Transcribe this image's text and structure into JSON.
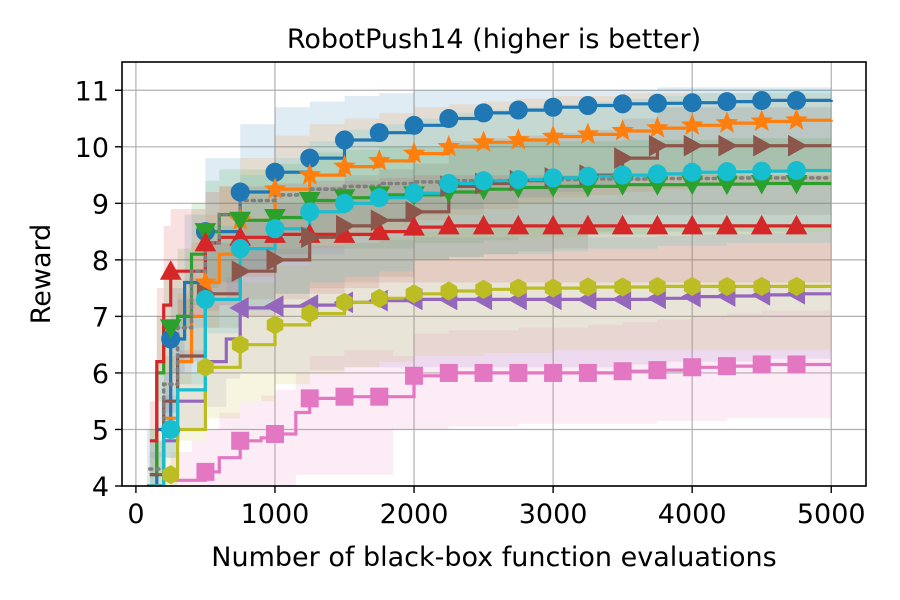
{
  "chart_data": {
    "type": "line",
    "title": "RobotPush14 (higher is better)",
    "xlabel": "Number of black-box function evaluations",
    "ylabel": "Reward",
    "xlim": [
      -100,
      5250
    ],
    "ylim": [
      4,
      11.5
    ],
    "xticks": [
      0,
      1000,
      2000,
      3000,
      4000,
      5000
    ],
    "yticks": [
      4,
      5,
      6,
      7,
      8,
      9,
      10,
      11
    ],
    "grid": true,
    "legend": "none",
    "series": [
      {
        "color": "#1f77b4",
        "marker": "circle",
        "x": [
          80,
          150,
          250,
          350,
          500,
          750,
          1000,
          1250,
          1500,
          1750,
          2000,
          2250,
          2500,
          2750,
          3000,
          3250,
          3500,
          3750,
          4000,
          4250,
          4500,
          4750,
          5000
        ],
        "y": [
          4.0,
          5.0,
          6.6,
          7.6,
          8.5,
          9.2,
          9.55,
          9.8,
          10.12,
          10.25,
          10.38,
          10.5,
          10.6,
          10.65,
          10.7,
          10.73,
          10.76,
          10.77,
          10.78,
          10.8,
          10.82,
          10.82,
          10.83
        ],
        "band_lo": [
          3.5,
          4.0,
          5.0,
          6.0,
          6.8,
          7.4,
          7.8,
          8.1,
          8.4,
          8.6,
          8.7,
          8.8,
          8.9,
          9.0,
          9.1,
          9.2,
          9.3,
          9.4,
          9.5,
          9.5,
          9.6,
          9.6,
          9.6
        ],
        "band_hi": [
          5.0,
          6.0,
          7.5,
          8.8,
          9.8,
          10.4,
          10.7,
          10.8,
          10.9,
          10.95,
          11.0,
          11.0,
          11.0,
          11.0,
          11.0,
          11.0,
          11.0,
          11.05,
          11.05,
          11.05,
          11.05,
          11.05,
          11.05
        ],
        "markers_x": [
          250,
          500,
          750,
          1000,
          1250,
          1500,
          1750,
          2000,
          2250,
          2500,
          2750,
          3000,
          3250,
          3500,
          3750,
          4000,
          4250,
          4500,
          4750
        ]
      },
      {
        "color": "#ff7f0e",
        "marker": "star",
        "x": [
          100,
          200,
          300,
          400,
          500,
          600,
          750,
          1000,
          1250,
          1500,
          1750,
          2000,
          2250,
          2500,
          2750,
          3000,
          3250,
          3500,
          3750,
          4000,
          4250,
          4500,
          4750,
          5000
        ],
        "y": [
          4.0,
          5.2,
          6.2,
          7.0,
          7.6,
          8.1,
          8.7,
          9.25,
          9.5,
          9.65,
          9.75,
          9.88,
          10.0,
          10.08,
          10.12,
          10.18,
          10.22,
          10.28,
          10.33,
          10.38,
          10.42,
          10.45,
          10.47,
          10.48
        ],
        "band_lo": [
          3.5,
          4.2,
          5.0,
          5.8,
          6.3,
          6.8,
          7.2,
          7.7,
          8.0,
          8.2,
          8.4,
          8.5,
          8.7,
          8.8,
          8.9,
          9.0,
          9.1,
          9.15,
          9.2,
          9.25,
          9.3,
          9.3,
          9.35,
          9.35
        ],
        "band_hi": [
          5.0,
          6.3,
          7.4,
          8.3,
          8.8,
          9.3,
          9.8,
          10.2,
          10.4,
          10.5,
          10.6,
          10.7,
          10.75,
          10.8,
          10.85,
          10.9,
          10.9,
          10.95,
          10.95,
          10.95,
          10.95,
          10.95,
          10.95,
          10.95
        ],
        "markers_x": [
          500,
          750,
          1000,
          1250,
          1500,
          1750,
          2000,
          2250,
          2500,
          2750,
          3000,
          3250,
          3500,
          3750,
          4000,
          4250,
          4500,
          4750
        ]
      },
      {
        "color": "#2ca02c",
        "marker": "triangle-down",
        "x": [
          100,
          150,
          200,
          300,
          400,
          500,
          600,
          750,
          1000,
          1250,
          1500,
          1750,
          2000,
          2250,
          2500,
          2750,
          3000,
          3250,
          3500,
          3750,
          4000,
          4250,
          4500,
          4750,
          5000
        ],
        "y": [
          4.2,
          6.0,
          6.8,
          7.0,
          8.1,
          8.5,
          8.8,
          8.7,
          8.75,
          9.05,
          9.1,
          9.15,
          9.15,
          9.2,
          9.25,
          9.28,
          9.3,
          9.3,
          9.33,
          9.33,
          9.34,
          9.34,
          9.35,
          9.35,
          9.35
        ],
        "band_lo": [
          3.8,
          4.8,
          5.5,
          6.0,
          6.8,
          7.2,
          7.5,
          7.6,
          7.8,
          8.0,
          8.1,
          8.2,
          8.2,
          8.3,
          8.3,
          8.35,
          8.4,
          8.4,
          8.45,
          8.45,
          8.5,
          8.5,
          8.5,
          8.5,
          8.5
        ],
        "band_hi": [
          5.0,
          7.0,
          7.8,
          8.2,
          9.0,
          9.4,
          9.6,
          9.6,
          9.7,
          9.9,
          9.95,
          10.0,
          10.0,
          10.05,
          10.05,
          10.1,
          10.1,
          10.1,
          10.12,
          10.12,
          10.12,
          10.15,
          10.15,
          10.15,
          10.15
        ],
        "markers_x": [
          250,
          500,
          750,
          1000,
          1250,
          1500,
          1750,
          2000,
          2250,
          2500,
          2750,
          3000,
          3250,
          3500,
          3750,
          4000,
          4250,
          4500,
          4750
        ]
      },
      {
        "color": "#d62728",
        "marker": "triangle-up",
        "x": [
          100,
          150,
          200,
          250,
          300,
          500,
          600,
          750,
          1000,
          1250,
          1500,
          1750,
          2000,
          2250,
          2500,
          2750,
          3000,
          3250,
          3500,
          3750,
          4000,
          4250,
          4500,
          4750,
          5000
        ],
        "y": [
          4.8,
          6.2,
          7.2,
          7.8,
          7.8,
          8.3,
          8.4,
          8.4,
          8.45,
          8.45,
          8.45,
          8.5,
          8.58,
          8.6,
          8.6,
          8.6,
          8.6,
          8.6,
          8.6,
          8.6,
          8.6,
          8.6,
          8.6,
          8.6,
          8.6
        ],
        "band_lo": [
          4.2,
          5.0,
          6.0,
          6.5,
          6.6,
          7.0,
          7.1,
          7.2,
          7.3,
          7.4,
          7.4,
          7.5,
          7.6,
          7.6,
          7.6,
          7.6,
          7.6,
          7.6,
          7.6,
          7.6,
          7.6,
          7.6,
          7.6,
          7.6,
          7.6
        ],
        "band_hi": [
          5.5,
          7.5,
          8.6,
          8.9,
          8.9,
          9.2,
          9.3,
          9.3,
          9.35,
          9.4,
          9.4,
          9.45,
          9.5,
          9.5,
          9.5,
          9.5,
          9.5,
          9.5,
          9.5,
          9.5,
          9.5,
          9.5,
          9.5,
          9.5,
          9.5
        ],
        "markers_x": [
          250,
          500,
          750,
          1000,
          1250,
          1500,
          1750,
          2000,
          2250,
          2500,
          2750,
          3000,
          3250,
          3500,
          3750,
          4000,
          4250,
          4500,
          4750
        ]
      },
      {
        "color": "#8c564b",
        "marker": "triangle-right",
        "x": [
          100,
          200,
          300,
          500,
          750,
          1000,
          1250,
          1500,
          1750,
          2000,
          2250,
          2500,
          2750,
          3000,
          3250,
          3500,
          3750,
          4000,
          4250,
          4500,
          4750,
          5000
        ],
        "y": [
          4.2,
          5.5,
          6.3,
          7.4,
          7.8,
          8.0,
          8.4,
          8.6,
          8.7,
          8.85,
          9.3,
          9.35,
          9.4,
          9.45,
          9.5,
          9.8,
          10.02,
          10.02,
          10.02,
          10.02,
          10.02,
          10.02
        ],
        "band_lo": [
          3.8,
          4.5,
          5.3,
          6.2,
          6.8,
          7.0,
          7.3,
          7.5,
          7.6,
          7.7,
          8.0,
          8.05,
          8.1,
          8.15,
          8.2,
          8.5,
          8.8,
          8.8,
          8.8,
          8.8,
          8.8,
          8.8
        ],
        "band_hi": [
          4.8,
          6.5,
          7.3,
          8.3,
          8.7,
          9.0,
          9.3,
          9.5,
          9.6,
          9.7,
          10.1,
          10.15,
          10.2,
          10.25,
          10.3,
          10.5,
          10.7,
          10.7,
          10.7,
          10.7,
          10.7,
          10.7
        ],
        "markers_x": [
          500,
          750,
          1000,
          1250,
          1500,
          1750,
          2000,
          2250,
          2500,
          2750,
          3000,
          3250,
          3500,
          3750,
          4000,
          4250,
          4500,
          4750
        ]
      },
      {
        "color": "#9467bd",
        "marker": "triangle-left",
        "x": [
          100,
          200,
          300,
          500,
          650,
          750,
          1000,
          1250,
          1500,
          1750,
          2000,
          2250,
          2500,
          2750,
          3000,
          3250,
          3500,
          3750,
          4000,
          4250,
          4500,
          4750,
          5000
        ],
        "y": [
          4.0,
          4.8,
          5.5,
          6.2,
          6.6,
          7.15,
          7.18,
          7.2,
          7.25,
          7.28,
          7.3,
          7.3,
          7.3,
          7.3,
          7.3,
          7.3,
          7.3,
          7.32,
          7.35,
          7.36,
          7.38,
          7.4,
          7.4
        ],
        "band_lo": [
          3.5,
          4.0,
          4.5,
          5.0,
          5.4,
          5.9,
          6.0,
          6.0,
          6.05,
          6.1,
          6.1,
          6.1,
          6.1,
          6.1,
          6.1,
          6.1,
          6.1,
          6.15,
          6.2,
          6.2,
          6.2,
          6.25,
          6.25
        ],
        "band_hi": [
          4.6,
          5.6,
          6.4,
          7.3,
          7.7,
          8.2,
          8.2,
          8.25,
          8.3,
          8.35,
          8.4,
          8.4,
          8.4,
          8.4,
          8.4,
          8.4,
          8.4,
          8.42,
          8.45,
          8.45,
          8.48,
          8.5,
          8.5
        ],
        "markers_x": [
          750,
          1000,
          1250,
          1500,
          1750,
          2000,
          2250,
          2500,
          2750,
          3000,
          3250,
          3500,
          3750,
          4000,
          4250,
          4500,
          4750
        ]
      },
      {
        "color": "#e377c2",
        "marker": "square",
        "x": [
          250,
          400,
          500,
          600,
          750,
          900,
          1000,
          1150,
          1250,
          1500,
          1750,
          1850,
          2000,
          2250,
          2500,
          2750,
          3000,
          3250,
          3500,
          3750,
          4000,
          4250,
          4500,
          4750,
          5000
        ],
        "y": [
          4.1,
          4.1,
          4.25,
          4.5,
          4.8,
          4.85,
          4.92,
          5.3,
          5.55,
          5.58,
          5.58,
          5.58,
          5.95,
          6.0,
          6.0,
          6.0,
          6.0,
          6.0,
          6.03,
          6.05,
          6.1,
          6.12,
          6.15,
          6.15,
          6.15
        ],
        "band_lo": [
          3.5,
          3.5,
          3.5,
          3.6,
          3.8,
          3.9,
          4.0,
          4.0,
          4.2,
          4.2,
          4.2,
          4.2,
          5.0,
          5.0,
          5.05,
          5.05,
          5.1,
          5.1,
          5.1,
          5.1,
          5.15,
          5.15,
          5.2,
          5.2,
          5.2
        ],
        "band_hi": [
          4.6,
          4.8,
          5.0,
          5.3,
          5.5,
          5.6,
          5.7,
          6.0,
          6.3,
          6.4,
          6.4,
          6.3,
          6.7,
          6.75,
          6.75,
          6.8,
          6.8,
          6.85,
          6.9,
          6.95,
          7.0,
          7.05,
          7.1,
          7.1,
          7.1
        ],
        "markers_x": [
          500,
          750,
          1000,
          1250,
          1500,
          1750,
          2000,
          2250,
          2500,
          2750,
          3000,
          3250,
          3500,
          3750,
          4000,
          4250,
          4500,
          4750
        ]
      },
      {
        "color": "#7f7f7f",
        "marker": "none",
        "dash": "dotted",
        "x": [
          100,
          200,
          300,
          400,
          500,
          600,
          750,
          1000,
          1250,
          1500,
          1750,
          2000,
          2250,
          2500,
          2750,
          3000,
          3250,
          3500,
          3750,
          4000,
          4250,
          4500,
          4750,
          5000
        ],
        "y": [
          4.3,
          5.8,
          6.8,
          7.8,
          8.3,
          8.8,
          9.05,
          9.15,
          9.25,
          9.3,
          9.35,
          9.38,
          9.4,
          9.4,
          9.42,
          9.42,
          9.43,
          9.43,
          9.44,
          9.44,
          9.45,
          9.45,
          9.45,
          9.45
        ],
        "band_lo": [],
        "band_hi": [],
        "markers_x": []
      },
      {
        "color": "#bcbd22",
        "marker": "hexagon",
        "x": [
          100,
          200,
          300,
          500,
          750,
          1000,
          1250,
          1500,
          1750,
          2000,
          2250,
          2500,
          2750,
          3000,
          3250,
          3500,
          3750,
          4000,
          4250,
          4500,
          4750,
          5000
        ],
        "y": [
          4.0,
          4.2,
          5.0,
          6.1,
          6.5,
          6.85,
          7.05,
          7.25,
          7.32,
          7.4,
          7.45,
          7.48,
          7.5,
          7.5,
          7.52,
          7.52,
          7.53,
          7.53,
          7.53,
          7.53,
          7.53,
          7.53
        ],
        "band_lo": [
          3.5,
          3.6,
          4.0,
          4.8,
          5.2,
          5.5,
          5.8,
          6.0,
          6.1,
          6.2,
          6.3,
          6.3,
          6.35,
          6.35,
          6.4,
          6.4,
          6.4,
          6.4,
          6.4,
          6.4,
          6.4,
          6.4
        ],
        "band_hi": [
          4.5,
          5.0,
          6.0,
          7.2,
          7.6,
          7.9,
          8.1,
          8.3,
          8.4,
          8.5,
          8.55,
          8.6,
          8.6,
          8.6,
          8.62,
          8.62,
          8.63,
          8.63,
          8.63,
          8.63,
          8.63,
          8.63
        ],
        "markers_x": [
          250,
          500,
          750,
          1000,
          1250,
          1500,
          1750,
          2000,
          2250,
          2500,
          2750,
          3000,
          3250,
          3500,
          3750,
          4000,
          4250,
          4500,
          4750
        ]
      },
      {
        "color": "#17becf",
        "marker": "circle",
        "x": [
          100,
          200,
          300,
          500,
          750,
          1000,
          1250,
          1500,
          1750,
          2000,
          2250,
          2500,
          2750,
          3000,
          3250,
          3500,
          3750,
          4000,
          4250,
          4500,
          4750,
          5000
        ],
        "y": [
          4.0,
          5.0,
          5.7,
          7.3,
          8.2,
          8.55,
          8.85,
          9.0,
          9.1,
          9.18,
          9.35,
          9.4,
          9.42,
          9.45,
          9.48,
          9.5,
          9.52,
          9.55,
          9.56,
          9.57,
          9.58,
          9.58
        ],
        "band_lo": [
          3.5,
          4.0,
          4.5,
          5.8,
          6.7,
          7.1,
          7.4,
          7.6,
          7.7,
          7.8,
          8.0,
          8.05,
          8.1,
          8.1,
          8.15,
          8.2,
          8.2,
          8.25,
          8.25,
          8.3,
          8.3,
          8.3
        ],
        "band_hi": [
          4.8,
          6.0,
          7.0,
          8.6,
          9.5,
          9.8,
          10.1,
          10.3,
          10.4,
          10.5,
          10.6,
          10.65,
          10.7,
          10.75,
          10.8,
          10.85,
          10.9,
          10.95,
          10.95,
          11.0,
          11.0,
          11.0
        ],
        "markers_x": [
          250,
          500,
          750,
          1000,
          1250,
          1500,
          1750,
          2000,
          2250,
          2500,
          2750,
          3000,
          3250,
          3500,
          3750,
          4000,
          4250,
          4500,
          4750
        ]
      }
    ]
  }
}
